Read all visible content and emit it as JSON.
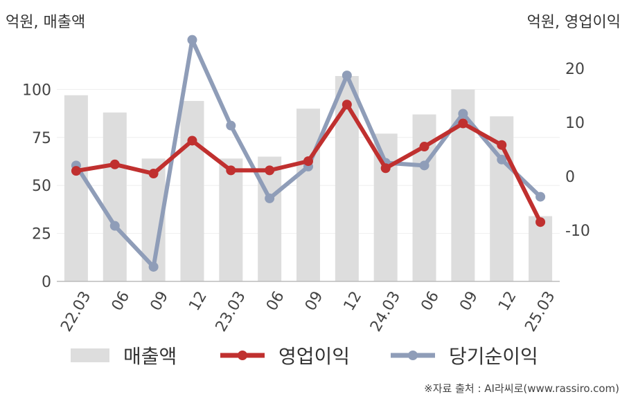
{
  "units": {
    "left": "억원, 매출액",
    "right": "억원, 영업이익"
  },
  "source": "※자료 출처 : AI라씨로(www.rassiro.com)",
  "legend": [
    {
      "label": "매출액",
      "color": "#dddddd",
      "kind": "bar"
    },
    {
      "label": "영업이익",
      "color": "#c0302f",
      "kind": "line"
    },
    {
      "label": "당기순이익",
      "color": "#8f9db8",
      "kind": "line"
    }
  ],
  "chart_data": {
    "type": "bar+line",
    "categories": [
      "22.03",
      "06",
      "09",
      "12",
      "23.03",
      "06",
      "09",
      "12",
      "24.03",
      "06",
      "09",
      "12",
      "25.03"
    ],
    "y_left": {
      "ticks": [
        0,
        25,
        50,
        75,
        100
      ],
      "range": [
        0,
        125
      ]
    },
    "y_right": {
      "ticks": [
        -10,
        0,
        10,
        20
      ],
      "range": [
        -19.5,
        25
      ]
    },
    "series": [
      {
        "name": "매출액",
        "axis": "left",
        "type": "bar",
        "color": "#dddddd",
        "values": [
          97,
          88,
          64,
          94,
          64,
          65,
          90,
          107,
          77,
          87,
          100,
          86,
          34
        ]
      },
      {
        "name": "영업이익",
        "axis": "right",
        "type": "line",
        "color": "#c0302f",
        "values": [
          1,
          2.2,
          0.5,
          6.6,
          1.1,
          1.1,
          2.8,
          13.3,
          1.5,
          5.5,
          9.8,
          5.8,
          -8.5
        ]
      },
      {
        "name": "당기순이익",
        "axis": "right",
        "type": "line",
        "color": "#8f9db8",
        "values": [
          2,
          -9.2,
          -16.8,
          25.3,
          9.4,
          -4.1,
          1.8,
          18.7,
          2.5,
          2,
          11.6,
          3.1,
          -3.8
        ]
      }
    ],
    "grid": true
  }
}
